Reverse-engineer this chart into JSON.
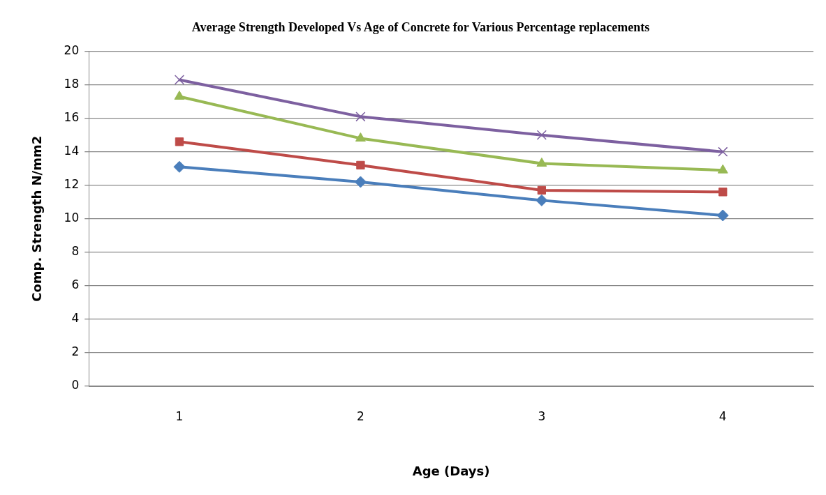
{
  "chart_data": {
    "type": "line",
    "title": "Average Strength Developed Vs Age of Concrete for Various Percentage replacements",
    "xlabel": "Age (Days)",
    "ylabel": "Comp. Strength N/mm2",
    "categories": [
      "1",
      "2",
      "3",
      "4"
    ],
    "series": [
      {
        "color": "#4a7ebb",
        "marker": "diamond",
        "values": [
          13.1,
          12.2,
          11.1,
          10.2
        ]
      },
      {
        "color": "#be4b48",
        "marker": "square",
        "values": [
          14.6,
          13.2,
          11.7,
          11.6
        ]
      },
      {
        "color": "#98b954",
        "marker": "triangle",
        "values": [
          17.3,
          14.8,
          13.3,
          12.9
        ]
      },
      {
        "color": "#7d60a0",
        "marker": "cross",
        "values": [
          18.3,
          16.1,
          15.0,
          14.0
        ]
      }
    ],
    "ylim": [
      0,
      20
    ],
    "yticks": [
      0,
      2,
      4,
      6,
      8,
      10,
      12,
      14,
      16,
      18,
      20
    ],
    "grid": "y",
    "legend": false,
    "line_style": "solid"
  }
}
